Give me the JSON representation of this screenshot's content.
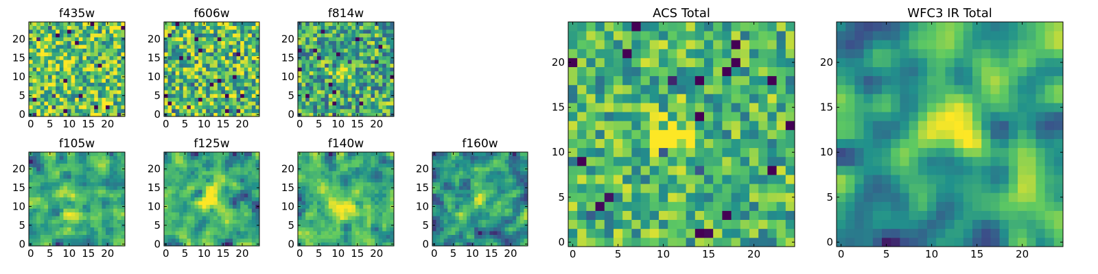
{
  "figure": {
    "background": "#ffffff",
    "colormap": "viridis",
    "colormap_stops": [
      "#440154",
      "#3b528b",
      "#21918c",
      "#5ec962",
      "#fde725"
    ]
  },
  "chart_data": [
    {
      "type": "heatmap",
      "title": "f435w",
      "grid_size": 25,
      "xticks": [
        "0",
        "5",
        "10",
        "15",
        "20"
      ],
      "yticks": [
        "0",
        "5",
        "10",
        "15",
        "20"
      ],
      "seed": 11,
      "smooth": 0,
      "blob": null,
      "noise": 0.34,
      "base": 0.72
    },
    {
      "type": "heatmap",
      "title": "f606w",
      "grid_size": 25,
      "xticks": [
        "0",
        "5",
        "10",
        "15",
        "20"
      ],
      "yticks": [
        "0",
        "5",
        "10",
        "15",
        "20"
      ],
      "seed": 23,
      "smooth": 0,
      "blob": null,
      "noise": 0.36,
      "base": 0.68
    },
    {
      "type": "heatmap",
      "title": "f814w",
      "grid_size": 25,
      "xticks": [
        "0",
        "5",
        "10",
        "15",
        "20"
      ],
      "yticks": [
        "0",
        "5",
        "10",
        "15",
        "20"
      ],
      "seed": 37,
      "smooth": 0,
      "blob": {
        "x": 11.5,
        "y": 12,
        "r": 1.6,
        "amp": 0.5
      },
      "noise": 0.34,
      "base": 0.62
    },
    {
      "type": "heatmap",
      "title": "f105w",
      "grid_size": 25,
      "xticks": [
        "0",
        "5",
        "10",
        "15",
        "20"
      ],
      "yticks": [
        "0",
        "5",
        "10",
        "15",
        "20"
      ],
      "seed": 41,
      "smooth": 1,
      "blob": {
        "x": 11,
        "y": 10,
        "r": 3.5,
        "amp": 0.3
      },
      "noise": 0.32,
      "base": 0.68
    },
    {
      "type": "heatmap",
      "title": "f125w",
      "grid_size": 25,
      "xticks": [
        "0",
        "5",
        "10",
        "15",
        "20"
      ],
      "yticks": [
        "0",
        "5",
        "10",
        "15",
        "20"
      ],
      "seed": 53,
      "smooth": 1,
      "blob": {
        "x": 11,
        "y": 12,
        "r": 3,
        "amp": 0.25
      },
      "noise": 0.32,
      "base": 0.65
    },
    {
      "type": "heatmap",
      "title": "f140w",
      "grid_size": 25,
      "xticks": [
        "0",
        "5",
        "10",
        "15",
        "20"
      ],
      "yticks": [
        "0",
        "5",
        "10",
        "15",
        "20"
      ],
      "seed": 67,
      "smooth": 1,
      "blob": {
        "x": 11,
        "y": 10,
        "r": 2.5,
        "amp": 0.35
      },
      "noise": 0.32,
      "base": 0.6
    },
    {
      "type": "heatmap",
      "title": "f160w",
      "grid_size": 25,
      "xticks": [
        "0",
        "5",
        "10",
        "15",
        "20"
      ],
      "yticks": [
        "0",
        "5",
        "10",
        "15",
        "20"
      ],
      "seed": 79,
      "smooth": 1,
      "blob": {
        "x": 12,
        "y": 12,
        "r": 1.8,
        "amp": 0.4
      },
      "noise": 0.34,
      "base": 0.52
    },
    {
      "type": "heatmap",
      "title": "ACS Total",
      "grid_size": 25,
      "xticks": [
        "0",
        "5",
        "10",
        "15",
        "20"
      ],
      "yticks": [
        "0",
        "5",
        "10",
        "15",
        "20"
      ],
      "seed": 97,
      "smooth": 0,
      "blob": {
        "x": 11.5,
        "y": 11.5,
        "r": 1.8,
        "amp": 0.35
      },
      "noise": 0.28,
      "base": 0.66
    },
    {
      "type": "heatmap",
      "title": "WFC3 IR Total",
      "grid_size": 25,
      "xticks": [
        "0",
        "5",
        "10",
        "15",
        "20"
      ],
      "yticks": [
        "0",
        "5",
        "10",
        "15",
        "20"
      ],
      "seed": 113,
      "smooth": 2,
      "blob": {
        "x": 12,
        "y": 12,
        "r": 2.6,
        "amp": 0.45
      },
      "noise": 0.3,
      "base": 0.55
    }
  ]
}
